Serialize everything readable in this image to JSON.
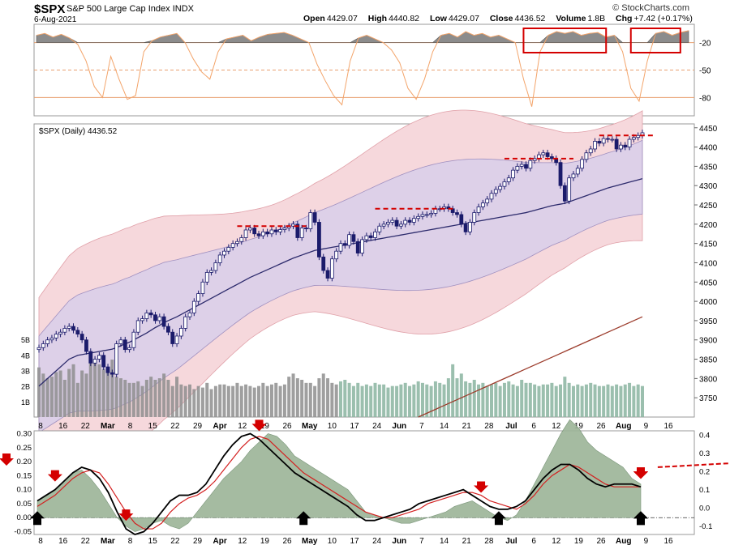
{
  "header": {
    "symbol": "$SPX",
    "name": "S&P 500 Large Cap Index",
    "exchange": "INDX",
    "date": "6-Aug-2021",
    "open_label": "Open",
    "open": "4429.07",
    "high_label": "High",
    "high": "4440.82",
    "low_label": "Low",
    "low": "4429.07",
    "close_label": "Close",
    "close": "4436.52",
    "volume_label": "Volume",
    "volume": "1.8B",
    "chg_label": "Chg",
    "chg": "+7.42 (+0.17%)",
    "credit": "© StockCharts.com"
  },
  "chart_data": [
    {
      "type": "area",
      "panel": "top-oscillator",
      "yticks": [
        -20,
        -50,
        -80
      ],
      "ylim": [
        0,
        -100
      ],
      "reference_lines": [
        -20,
        -50,
        -80
      ],
      "x_index": [
        0,
        2,
        4,
        6,
        8,
        10,
        12,
        14,
        16,
        18,
        20,
        22,
        24,
        26,
        28,
        30,
        32,
        34,
        36,
        38,
        40,
        42,
        44,
        46,
        48,
        50,
        52,
        54,
        56,
        58,
        60,
        62,
        64,
        66,
        68,
        70,
        72,
        74,
        76,
        78,
        80,
        82,
        84,
        86,
        88,
        90,
        92,
        94,
        96,
        98,
        100,
        102,
        104,
        106,
        108,
        110,
        112,
        114,
        116,
        118,
        120,
        122,
        124,
        126,
        128,
        130,
        132,
        134,
        136,
        138,
        140,
        142,
        144,
        146,
        148,
        150,
        152,
        154,
        156,
        158
      ],
      "values": [
        -12,
        -10,
        -14,
        -11,
        -15,
        -22,
        -40,
        -68,
        -80,
        -35,
        -60,
        -82,
        -78,
        -30,
        -18,
        -14,
        -12,
        -10,
        -20,
        -38,
        -52,
        -60,
        -30,
        -16,
        -14,
        -12,
        -18,
        -14,
        -11,
        -10,
        -9,
        -12,
        -16,
        -20,
        -44,
        -62,
        -78,
        -88,
        -40,
        -15,
        -12,
        -16,
        -20,
        -28,
        -42,
        -70,
        -82,
        -60,
        -30,
        -12,
        -10,
        -14,
        -8,
        -12,
        -10,
        -14,
        -12,
        -16,
        -20,
        -60,
        -90,
        -30,
        -12,
        -8,
        -10,
        -8,
        -12,
        -10,
        -9,
        -14,
        -12,
        -30,
        -70,
        -84,
        -40,
        -10,
        -8,
        -12,
        -9,
        -7
      ],
      "annotations": [
        {
          "kind": "box",
          "from_index": 118,
          "to_index": 138,
          "label": ""
        },
        {
          "kind": "box",
          "from_index": 144,
          "to_index": 156,
          "label": ""
        }
      ]
    },
    {
      "type": "candlestick",
      "panel": "price",
      "title": "$SPX (Daily) 4436.52",
      "ylim": [
        3700,
        4460
      ],
      "yticks": [
        3750,
        3800,
        3850,
        3900,
        3950,
        4000,
        4050,
        4100,
        4150,
        4200,
        4250,
        4300,
        4350,
        4400,
        4450
      ],
      "xticks": [
        "8",
        "16",
        "22",
        "Mar",
        "8",
        "15",
        "22",
        "29",
        "Apr",
        "12",
        "19",
        "26",
        "May",
        "10",
        "17",
        "24",
        "Jun",
        "7",
        "14",
        "21",
        "28",
        "Jul",
        "6",
        "12",
        "19",
        "26",
        "Aug",
        "9",
        "16"
      ],
      "volume_ticks": [
        "1B",
        "2B",
        "3B",
        "4B",
        "5B"
      ],
      "close": [
        3880,
        3890,
        3900,
        3905,
        3915,
        3920,
        3930,
        3935,
        3925,
        3915,
        3900,
        3870,
        3840,
        3850,
        3860,
        3830,
        3815,
        3811,
        3890,
        3900,
        3875,
        3880,
        3920,
        3950,
        3955,
        3970,
        3965,
        3950,
        3960,
        3935,
        3920,
        3890,
        3910,
        3930,
        3960,
        3970,
        4000,
        4020,
        4050,
        4075,
        4080,
        4100,
        4120,
        4130,
        4140,
        4150,
        4155,
        4165,
        4185,
        4190,
        4175,
        4170,
        4180,
        4175,
        4185,
        4180,
        4186,
        4190,
        4195,
        4200,
        4165,
        4190,
        4188,
        4230,
        4205,
        4115,
        4080,
        4060,
        4110,
        4130,
        4150,
        4145,
        4173,
        4155,
        4125,
        4160,
        4170,
        4165,
        4180,
        4195,
        4200,
        4205,
        4210,
        4195,
        4200,
        4210,
        4205,
        4215,
        4220,
        4225,
        4225,
        4228,
        4240,
        4240,
        4245,
        4240,
        4230,
        4225,
        4200,
        4180,
        4205,
        4230,
        4245,
        4255,
        4265,
        4280,
        4290,
        4298,
        4310,
        4320,
        4340,
        4350,
        4355,
        4345,
        4365,
        4370,
        4380,
        4385,
        4375,
        4370,
        4360,
        4300,
        4260,
        4320,
        4330,
        4345,
        4368,
        4385,
        4395,
        4415,
        4410,
        4422,
        4420,
        4420,
        4395,
        4405,
        4400,
        4420,
        4425,
        4430,
        4437
      ],
      "sma_50": [
        3780,
        3790,
        3800,
        3810,
        3820,
        3830,
        3840,
        3850,
        3855,
        3860,
        3862,
        3864,
        3866,
        3868,
        3870,
        3872,
        3874,
        3876,
        3880,
        3885,
        3890,
        3894,
        3900,
        3906,
        3912,
        3918,
        3925,
        3932,
        3938,
        3945,
        3950,
        3955,
        3960,
        3966,
        3972,
        3978,
        3984,
        3990,
        3996,
        4002,
        4008,
        4014,
        4020,
        4026,
        4032,
        4038,
        4044,
        4050,
        4056,
        4062,
        4067,
        4072,
        4077,
        4082,
        4087,
        4092,
        4097,
        4102,
        4107,
        4112,
        4116,
        4120,
        4124,
        4128,
        4132,
        4134,
        4136,
        4138,
        4140,
        4142,
        4144,
        4146,
        4148,
        4150,
        4152,
        4154,
        4156,
        4158,
        4160,
        4162,
        4164,
        4166,
        4168,
        4170,
        4172,
        4174,
        4176,
        4178,
        4180,
        4182,
        4184,
        4186,
        4188,
        4190,
        4192,
        4194,
        4196,
        4198,
        4200,
        4202,
        4204,
        4206,
        4208,
        4210,
        4212,
        4214,
        4216,
        4218,
        4220,
        4222,
        4224,
        4226,
        4228,
        4230,
        4233,
        4236,
        4239,
        4242,
        4245,
        4248,
        4250,
        4252,
        4254,
        4258,
        4262,
        4266,
        4270,
        4274,
        4278,
        4282,
        4286,
        4290,
        4294,
        4297,
        4300,
        4303,
        4306,
        4309,
        4312,
        4315,
        4318
      ],
      "sma_200": [
        3450,
        3455,
        3460,
        3465,
        3470,
        3475,
        3480,
        3485,
        3490,
        3495,
        3500,
        3505,
        3510,
        3515,
        3520,
        3525,
        3530,
        3535,
        3540,
        3545,
        3550,
        3555,
        3560,
        3565,
        3570,
        3575,
        3580,
        3585,
        3590,
        3595,
        3600,
        3605,
        3610,
        3615,
        3620,
        3625,
        3630,
        3635,
        3640,
        3645,
        3650,
        3655,
        3660,
        3665,
        3670,
        3675,
        3680,
        3685,
        3690,
        3695,
        3700,
        3705,
        3710,
        3715,
        3720,
        3725,
        3730,
        3735,
        3740,
        3745,
        3750,
        3755,
        3760,
        3765,
        3770,
        3775,
        3780,
        3785,
        3790,
        3795,
        3800,
        3805,
        3810,
        3815,
        3820,
        3825,
        3830,
        3835,
        3840,
        3845,
        3850,
        3855,
        3860,
        3865,
        3870,
        3875,
        3880,
        3885,
        3890,
        3895,
        3900,
        3905,
        3910,
        3915,
        3920,
        3925,
        3930,
        3935,
        3940,
        3945,
        3950,
        3955,
        3960
      ],
      "volume_billions": [
        3.2,
        2.8,
        2.5,
        2.6,
        2.9,
        3.0,
        2.4,
        3.1,
        3.4,
        2.2,
        3.0,
        2.8,
        4.2,
        3.6,
        3.4,
        3.1,
        3.2,
        3.7,
        2.6,
        2.5,
        2.4,
        2.2,
        2.2,
        2.3,
        2.0,
        2.4,
        2.6,
        2.4,
        2.5,
        2.8,
        2.4,
        2.0,
        2.6,
        2.1,
        2.0,
        2.1,
        1.8,
        2.0,
        1.9,
        2.2,
        1.8,
        2.0,
        2.1,
        2.1,
        2.0,
        2.0,
        2.2,
        2.0,
        2.1,
        2.0,
        1.9,
        2.0,
        2.2,
        2.0,
        2.1,
        2.2,
        2.0,
        2.1,
        2.6,
        2.8,
        2.5,
        2.4,
        2.2,
        2.2,
        2.0,
        2.5,
        2.8,
        2.5,
        2.2,
        2.1,
        2.3,
        2.4,
        2.2,
        2.0,
        2.2,
        2.0,
        2.1,
        2.0,
        2.2,
        2.1,
        2.1,
        1.9,
        2.0,
        2.0,
        2.1,
        2.2,
        2.0,
        2.1,
        2.3,
        2.2,
        2.1,
        2.0,
        2.3,
        2.2,
        2.1,
        2.5,
        3.4,
        2.5,
        2.8,
        2.3,
        2.2,
        2.4,
        2.1,
        2.2,
        2.0,
        2.1,
        2.2,
        2.0,
        2.2,
        2.3,
        2.1,
        2.0,
        2.4,
        2.2,
        2.2,
        2.1,
        2.0,
        2.1,
        2.1,
        2.2,
        2.0,
        2.1,
        2.6,
        2.2,
        2.0,
        2.1,
        2.0,
        2.1,
        2.2,
        2.1,
        2.0,
        2.0,
        2.1,
        2.0,
        2.1,
        2.0,
        2.1,
        2.2,
        2.0,
        2.1,
        2.0
      ],
      "annotations": [
        {
          "kind": "resistance",
          "level": 4195,
          "label": ""
        },
        {
          "kind": "resistance",
          "level": 4240,
          "label": ""
        },
        {
          "kind": "resistance",
          "level": 4370,
          "label": ""
        },
        {
          "kind": "resistance",
          "level": 4430,
          "label": ""
        }
      ]
    },
    {
      "type": "line",
      "panel": "bottom-macd",
      "ylim_left": [
        -0.06,
        0.31
      ],
      "yticks_left": [
        0.3,
        0.25,
        0.2,
        0.15,
        0.1,
        0.05,
        0.0,
        -0.05
      ],
      "ylim_right": [
        -0.15,
        0.42
      ],
      "yticks_right": [
        0.4,
        0.3,
        0.2,
        0.1,
        0.0,
        -0.1
      ],
      "xticks": [
        "8",
        "16",
        "22",
        "Mar",
        "8",
        "15",
        "22",
        "29",
        "Apr",
        "12",
        "19",
        "26",
        "May",
        "10",
        "17",
        "24",
        "Jun",
        "7",
        "14",
        "21",
        "28",
        "Jul",
        "6",
        "12",
        "19",
        "26",
        "Aug",
        "9",
        "16"
      ],
      "series": [
        {
          "role": "histogram",
          "values": [
            0.06,
            0.08,
            0.1,
            0.13,
            0.16,
            0.17,
            0.14,
            0.1,
            0.05,
            0.0,
            -0.03,
            -0.05,
            -0.04,
            -0.02,
            -0.01,
            -0.03,
            -0.04,
            -0.02,
            0.02,
            0.06,
            0.1,
            0.14,
            0.17,
            0.2,
            0.24,
            0.27,
            0.3,
            0.29,
            0.26,
            0.22,
            0.2,
            0.18,
            0.16,
            0.14,
            0.12,
            0.1,
            0.06,
            0.02,
            0.01,
            0.0,
            -0.01,
            -0.02,
            -0.02,
            -0.01,
            0.0,
            0.01,
            0.02,
            0.04,
            0.05,
            0.06,
            0.04,
            0.02,
            0.0,
            -0.01,
            0.01,
            0.06,
            0.12,
            0.18,
            0.24,
            0.3,
            0.35,
            0.32,
            0.27,
            0.24,
            0.22,
            0.2,
            0.18,
            0.14,
            0.12
          ]
        },
        {
          "role": "macd",
          "values": [
            0.06,
            0.08,
            0.1,
            0.13,
            0.16,
            0.18,
            0.17,
            0.14,
            0.09,
            0.02,
            -0.04,
            -0.06,
            -0.05,
            -0.02,
            0.02,
            0.06,
            0.08,
            0.08,
            0.09,
            0.12,
            0.17,
            0.22,
            0.26,
            0.29,
            0.3,
            0.28,
            0.25,
            0.22,
            0.19,
            0.16,
            0.14,
            0.12,
            0.1,
            0.08,
            0.06,
            0.04,
            0.01,
            -0.01,
            -0.01,
            0.0,
            0.01,
            0.02,
            0.03,
            0.05,
            0.06,
            0.07,
            0.08,
            0.09,
            0.1,
            0.08,
            0.06,
            0.04,
            0.03,
            0.03,
            0.04,
            0.06,
            0.1,
            0.14,
            0.17,
            0.19,
            0.19,
            0.17,
            0.14,
            0.12,
            0.11,
            0.12,
            0.12,
            0.12,
            0.11
          ]
        },
        {
          "role": "signal",
          "values": [
            0.04,
            0.06,
            0.08,
            0.11,
            0.14,
            0.16,
            0.17,
            0.16,
            0.12,
            0.07,
            0.02,
            -0.02,
            -0.04,
            -0.04,
            -0.02,
            0.02,
            0.05,
            0.07,
            0.08,
            0.1,
            0.13,
            0.17,
            0.21,
            0.25,
            0.28,
            0.29,
            0.28,
            0.25,
            0.22,
            0.19,
            0.16,
            0.14,
            0.12,
            0.1,
            0.08,
            0.06,
            0.04,
            0.02,
            0.01,
            0.0,
            0.0,
            0.01,
            0.02,
            0.03,
            0.05,
            0.06,
            0.07,
            0.08,
            0.09,
            0.09,
            0.08,
            0.06,
            0.05,
            0.04,
            0.03,
            0.05,
            0.08,
            0.12,
            0.15,
            0.17,
            0.19,
            0.18,
            0.16,
            0.14,
            0.12,
            0.11,
            0.11,
            0.11,
            0.11
          ]
        }
      ],
      "annotations": [
        {
          "kind": "down-arrow",
          "index": 2
        },
        {
          "kind": "down-arrow",
          "index": 10
        },
        {
          "kind": "down-arrow",
          "index": 25
        },
        {
          "kind": "down-arrow",
          "index": 50
        },
        {
          "kind": "down-arrow",
          "index": 73
        },
        {
          "kind": "down-arrow",
          "index": 98
        },
        {
          "kind": "down-arrow",
          "index": 128
        },
        {
          "kind": "down-arrow",
          "index": 140
        },
        {
          "kind": "up-arrow",
          "index": 0
        },
        {
          "kind": "up-arrow",
          "index": 30
        },
        {
          "kind": "up-arrow",
          "index": 52
        },
        {
          "kind": "up-arrow",
          "index": 100
        },
        {
          "kind": "up-arrow",
          "index": 126
        },
        {
          "kind": "trendline",
          "from_index": 140,
          "to_index": 148
        }
      ]
    }
  ],
  "colors": {
    "oscillator_fill": "#8c8c8c",
    "oscillator_line": "#f3a46a",
    "ref_line": "#e8a070",
    "band_outer": "#f6d8dc",
    "band_inner": "#ddd0e8",
    "candle": "#1b1b6b",
    "sma_50": "#2c2a6c",
    "sma_200": "#9c3c2c",
    "volume_down": "#8e8e8e",
    "volume_up": "#8ab4a0",
    "macd_fill": "#9cb497",
    "macd_neg_fill": "#c9a7a7",
    "macd_line": "#000000",
    "signal_line": "#d32020",
    "annotation": "#d40000",
    "arrow_up": "#000000"
  }
}
